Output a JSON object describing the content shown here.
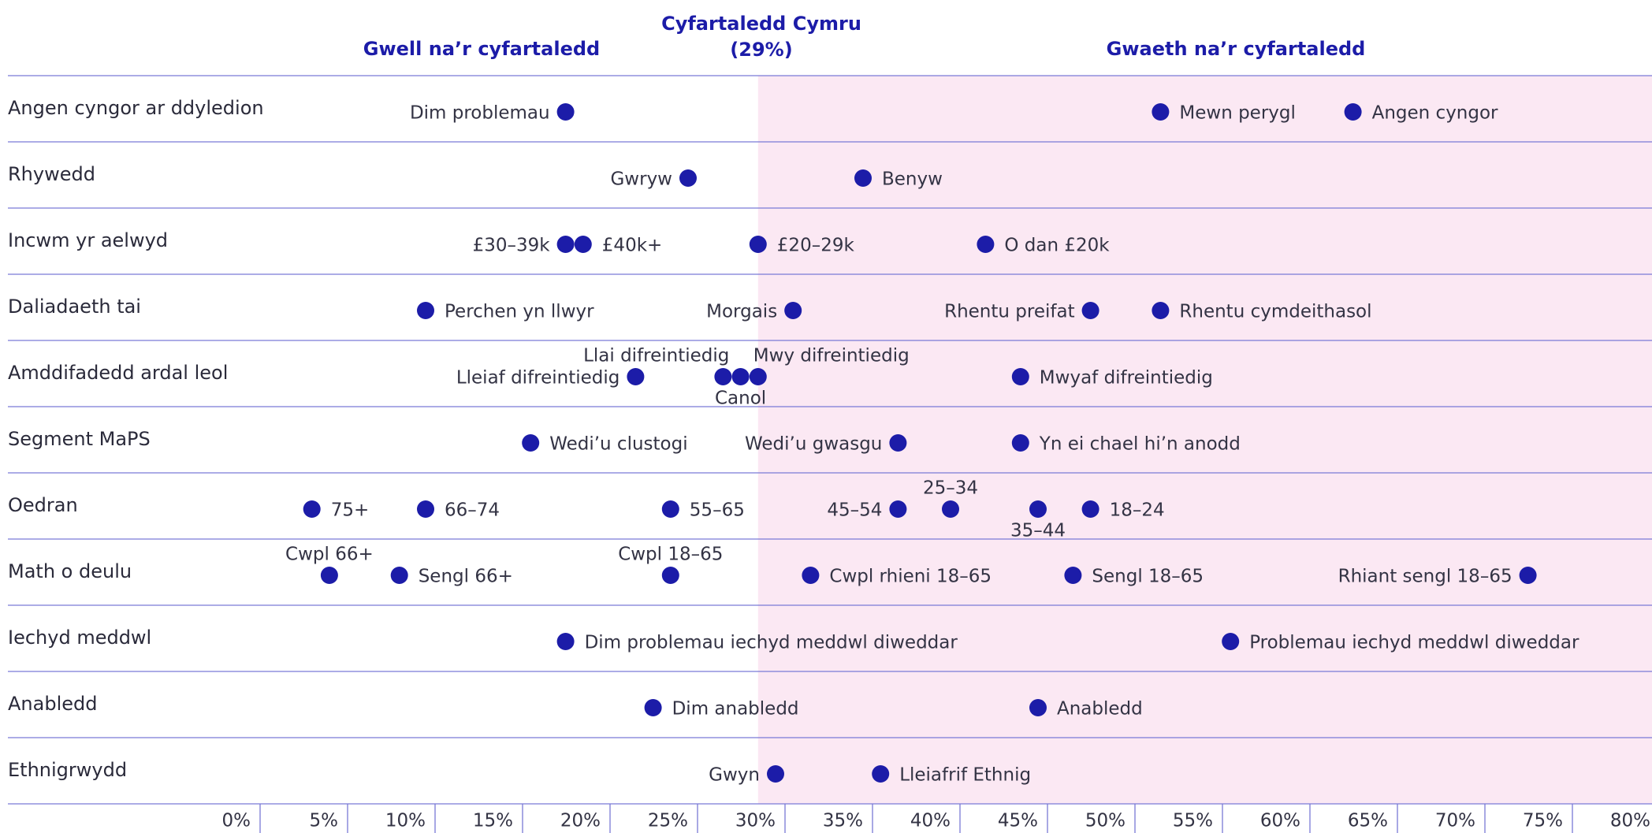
{
  "chart_data": {
    "type": "dot",
    "better_label": "Gwell na’r cyfartaledd",
    "worse_label": "Gwaeth na’r cyfartaledd",
    "average_label": "Cyfartaledd Cymru",
    "average": 29,
    "average_value_label": "(29%)",
    "color": "#1c1ca8",
    "shade_color": "#fbe8f3",
    "line_color": "#7a7ad6",
    "xlim": [
      0,
      80
    ],
    "xticks": [
      {
        "value": 0,
        "label": "0%"
      },
      {
        "value": 5,
        "label": "5%"
      },
      {
        "value": 10,
        "label": "10%"
      },
      {
        "value": 15,
        "label": "15%"
      },
      {
        "value": 20,
        "label": "20%"
      },
      {
        "value": 25,
        "label": "25%"
      },
      {
        "value": 30,
        "label": "30%"
      },
      {
        "value": 35,
        "label": "35%"
      },
      {
        "value": 40,
        "label": "40%"
      },
      {
        "value": 45,
        "label": "45%"
      },
      {
        "value": 50,
        "label": "50%"
      },
      {
        "value": 55,
        "label": "55%"
      },
      {
        "value": 60,
        "label": "60%"
      },
      {
        "value": 65,
        "label": "65%"
      },
      {
        "value": 70,
        "label": "70%"
      },
      {
        "value": 75,
        "label": "75%"
      },
      {
        "value": 80,
        "label": "80%"
      }
    ],
    "rows": [
      {
        "name": "Angen cyngor ar ddyledion",
        "points": [
          {
            "name": "Dim problemau",
            "value": 18
          },
          {
            "name": "Mewn perygl",
            "value": 52
          },
          {
            "name": "Angen cyngor",
            "value": 63
          }
        ]
      },
      {
        "name": "Rhywedd",
        "points": [
          {
            "name": "Gwryw",
            "value": 25
          },
          {
            "name": "Benyw",
            "value": 35
          }
        ]
      },
      {
        "name": "Incwm yr aelwyd",
        "points": [
          {
            "name": "£30–39k",
            "value": 18
          },
          {
            "name": "£40k+",
            "value": 19
          },
          {
            "name": "£20–29k",
            "value": 29
          },
          {
            "name": "O dan £20k",
            "value": 42
          }
        ]
      },
      {
        "name": "Daliadaeth tai",
        "points": [
          {
            "name": "Perchen yn llwyr",
            "value": 10
          },
          {
            "name": "Morgais",
            "value": 31
          },
          {
            "name": "Rhentu preifat",
            "value": 48
          },
          {
            "name": "Rhentu cymdeithasol",
            "value": 52
          }
        ]
      },
      {
        "name": "Amddifadedd ardal leol",
        "points": [
          {
            "name": "Lleiaf difreintiedig",
            "value": 22
          },
          {
            "name": "Llai difreintiedig",
            "value": 27
          },
          {
            "name": "Canol",
            "value": 28
          },
          {
            "name": "Mwy difreintiedig",
            "value": 29
          },
          {
            "name": "Mwyaf difreintiedig",
            "value": 44
          }
        ]
      },
      {
        "name": "Segment MaPS",
        "points": [
          {
            "name": "Wedi’u clustogi",
            "value": 16
          },
          {
            "name": "Wedi’u gwasgu",
            "value": 37
          },
          {
            "name": "Yn ei chael hi’n anodd",
            "value": 44
          }
        ]
      },
      {
        "name": "Oedran",
        "points": [
          {
            "name": "75+",
            "value": 3.5
          },
          {
            "name": "66–74",
            "value": 10
          },
          {
            "name": "55–65",
            "value": 24
          },
          {
            "name": "45–54",
            "value": 37
          },
          {
            "name": "25–34",
            "value": 40
          },
          {
            "name": "35–44",
            "value": 45
          },
          {
            "name": "18–24",
            "value": 48
          }
        ]
      },
      {
        "name": "Math o deulu",
        "points": [
          {
            "name": "Cwpl 66+",
            "value": 4.5
          },
          {
            "name": "Sengl 66+",
            "value": 8.5
          },
          {
            "name": "Cwpl 18–65",
            "value": 24
          },
          {
            "name": "Cwpl rhieni 18–65",
            "value": 32
          },
          {
            "name": "Sengl 18–65",
            "value": 47
          },
          {
            "name": "Rhiant sengl 18–65",
            "value": 73
          }
        ]
      },
      {
        "name": "Iechyd meddwl",
        "points": [
          {
            "name": "Dim problemau iechyd meddwl diweddar",
            "value": 18
          },
          {
            "name": "Problemau iechyd meddwl diweddar",
            "value": 56
          }
        ]
      },
      {
        "name": "Anabledd",
        "points": [
          {
            "name": "Dim anabledd",
            "value": 23
          },
          {
            "name": "Anabledd",
            "value": 45
          }
        ]
      },
      {
        "name": "Ethnigrwydd",
        "points": [
          {
            "name": "Gwyn",
            "value": 30
          },
          {
            "name": "Lleiafrif Ethnig",
            "value": 36
          }
        ]
      }
    ]
  }
}
